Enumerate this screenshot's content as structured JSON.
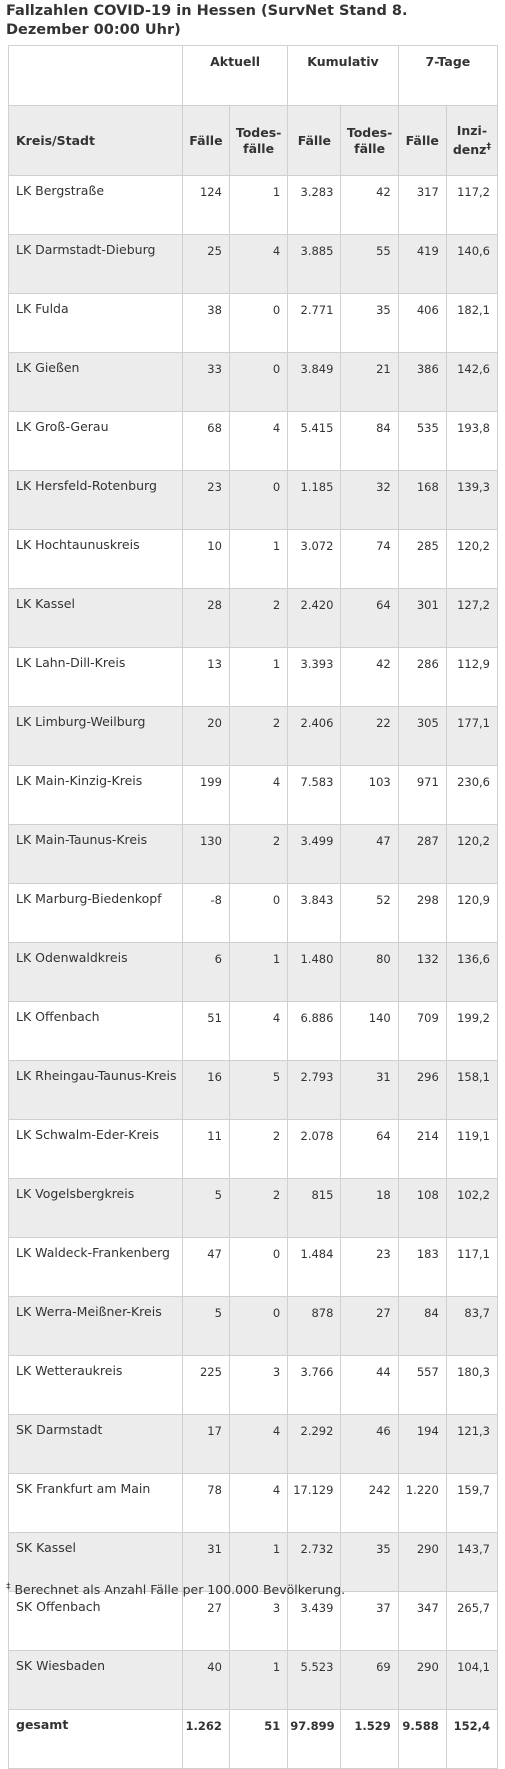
{
  "title": "Fallzahlen COVID-19 in Hessen (SurvNet Stand 8. Dezember 00:00 Uhr)",
  "table": {
    "group_headers": [
      "",
      "Aktuell",
      "Kumulativ",
      "7-Tage"
    ],
    "col_headers": [
      "Kreis/Stadt",
      "Fälle",
      "Todes-fälle",
      "Fälle",
      "Todes-fälle",
      "Fälle",
      "Inzi-denz"
    ],
    "incidence_marker": "‡",
    "rows": [
      [
        "LK Bergstraße",
        "124",
        "1",
        "3.283",
        "42",
        "317",
        "117,2"
      ],
      [
        "LK Darmstadt-Dieburg",
        "25",
        "4",
        "3.885",
        "55",
        "419",
        "140,6"
      ],
      [
        "LK Fulda",
        "38",
        "0",
        "2.771",
        "35",
        "406",
        "182,1"
      ],
      [
        "LK Gießen",
        "33",
        "0",
        "3.849",
        "21",
        "386",
        "142,6"
      ],
      [
        "LK Groß-Gerau",
        "68",
        "4",
        "5.415",
        "84",
        "535",
        "193,8"
      ],
      [
        "LK Hersfeld-Rotenburg",
        "23",
        "0",
        "1.185",
        "32",
        "168",
        "139,3"
      ],
      [
        "LK Hochtaunuskreis",
        "10",
        "1",
        "3.072",
        "74",
        "285",
        "120,2"
      ],
      [
        "LK Kassel",
        "28",
        "2",
        "2.420",
        "64",
        "301",
        "127,2"
      ],
      [
        "LK Lahn-Dill-Kreis",
        "13",
        "1",
        "3.393",
        "42",
        "286",
        "112,9"
      ],
      [
        "LK Limburg-Weilburg",
        "20",
        "2",
        "2.406",
        "22",
        "305",
        "177,1"
      ],
      [
        "LK Main-Kinzig-Kreis",
        "199",
        "4",
        "7.583",
        "103",
        "971",
        "230,6"
      ],
      [
        "LK Main-Taunus-Kreis",
        "130",
        "2",
        "3.499",
        "47",
        "287",
        "120,2"
      ],
      [
        "LK Marburg-Biedenkopf",
        "-8",
        "0",
        "3.843",
        "52",
        "298",
        "120,9"
      ],
      [
        "LK Odenwaldkreis",
        "6",
        "1",
        "1.480",
        "80",
        "132",
        "136,6"
      ],
      [
        "LK Offenbach",
        "51",
        "4",
        "6.886",
        "140",
        "709",
        "199,2"
      ],
      [
        "LK Rheingau-Taunus-Kreis",
        "16",
        "5",
        "2.793",
        "31",
        "296",
        "158,1"
      ],
      [
        "LK Schwalm-Eder-Kreis",
        "11",
        "2",
        "2.078",
        "64",
        "214",
        "119,1"
      ],
      [
        "LK Vogelsbergkreis",
        "5",
        "2",
        "815",
        "18",
        "108",
        "102,2"
      ],
      [
        "LK Waldeck-Frankenberg",
        "47",
        "0",
        "1.484",
        "23",
        "183",
        "117,1"
      ],
      [
        "LK Werra-Meißner-Kreis",
        "5",
        "0",
        "878",
        "27",
        "84",
        "83,7"
      ],
      [
        "LK Wetteraukreis",
        "225",
        "3",
        "3.766",
        "44",
        "557",
        "180,3"
      ],
      [
        "SK Darmstadt",
        "17",
        "4",
        "2.292",
        "46",
        "194",
        "121,3"
      ],
      [
        "SK Frankfurt am Main",
        "78",
        "4",
        "17.129",
        "242",
        "1.220",
        "159,7"
      ],
      [
        "SK Kassel",
        "31",
        "1",
        "2.732",
        "35",
        "290",
        "143,7"
      ],
      [
        "SK Offenbach",
        "27",
        "3",
        "3.439",
        "37",
        "347",
        "265,7"
      ],
      [
        "SK Wiesbaden",
        "40",
        "1",
        "5.523",
        "69",
        "290",
        "104,1"
      ]
    ],
    "total": [
      "gesamt",
      "1.262",
      "51",
      "97.899",
      "1.529",
      "9.588",
      "152,4"
    ]
  },
  "footnote": {
    "marker": "‡",
    "text": " Berechnet als Anzahl Fälle per 100.000 Bevölkerung."
  }
}
